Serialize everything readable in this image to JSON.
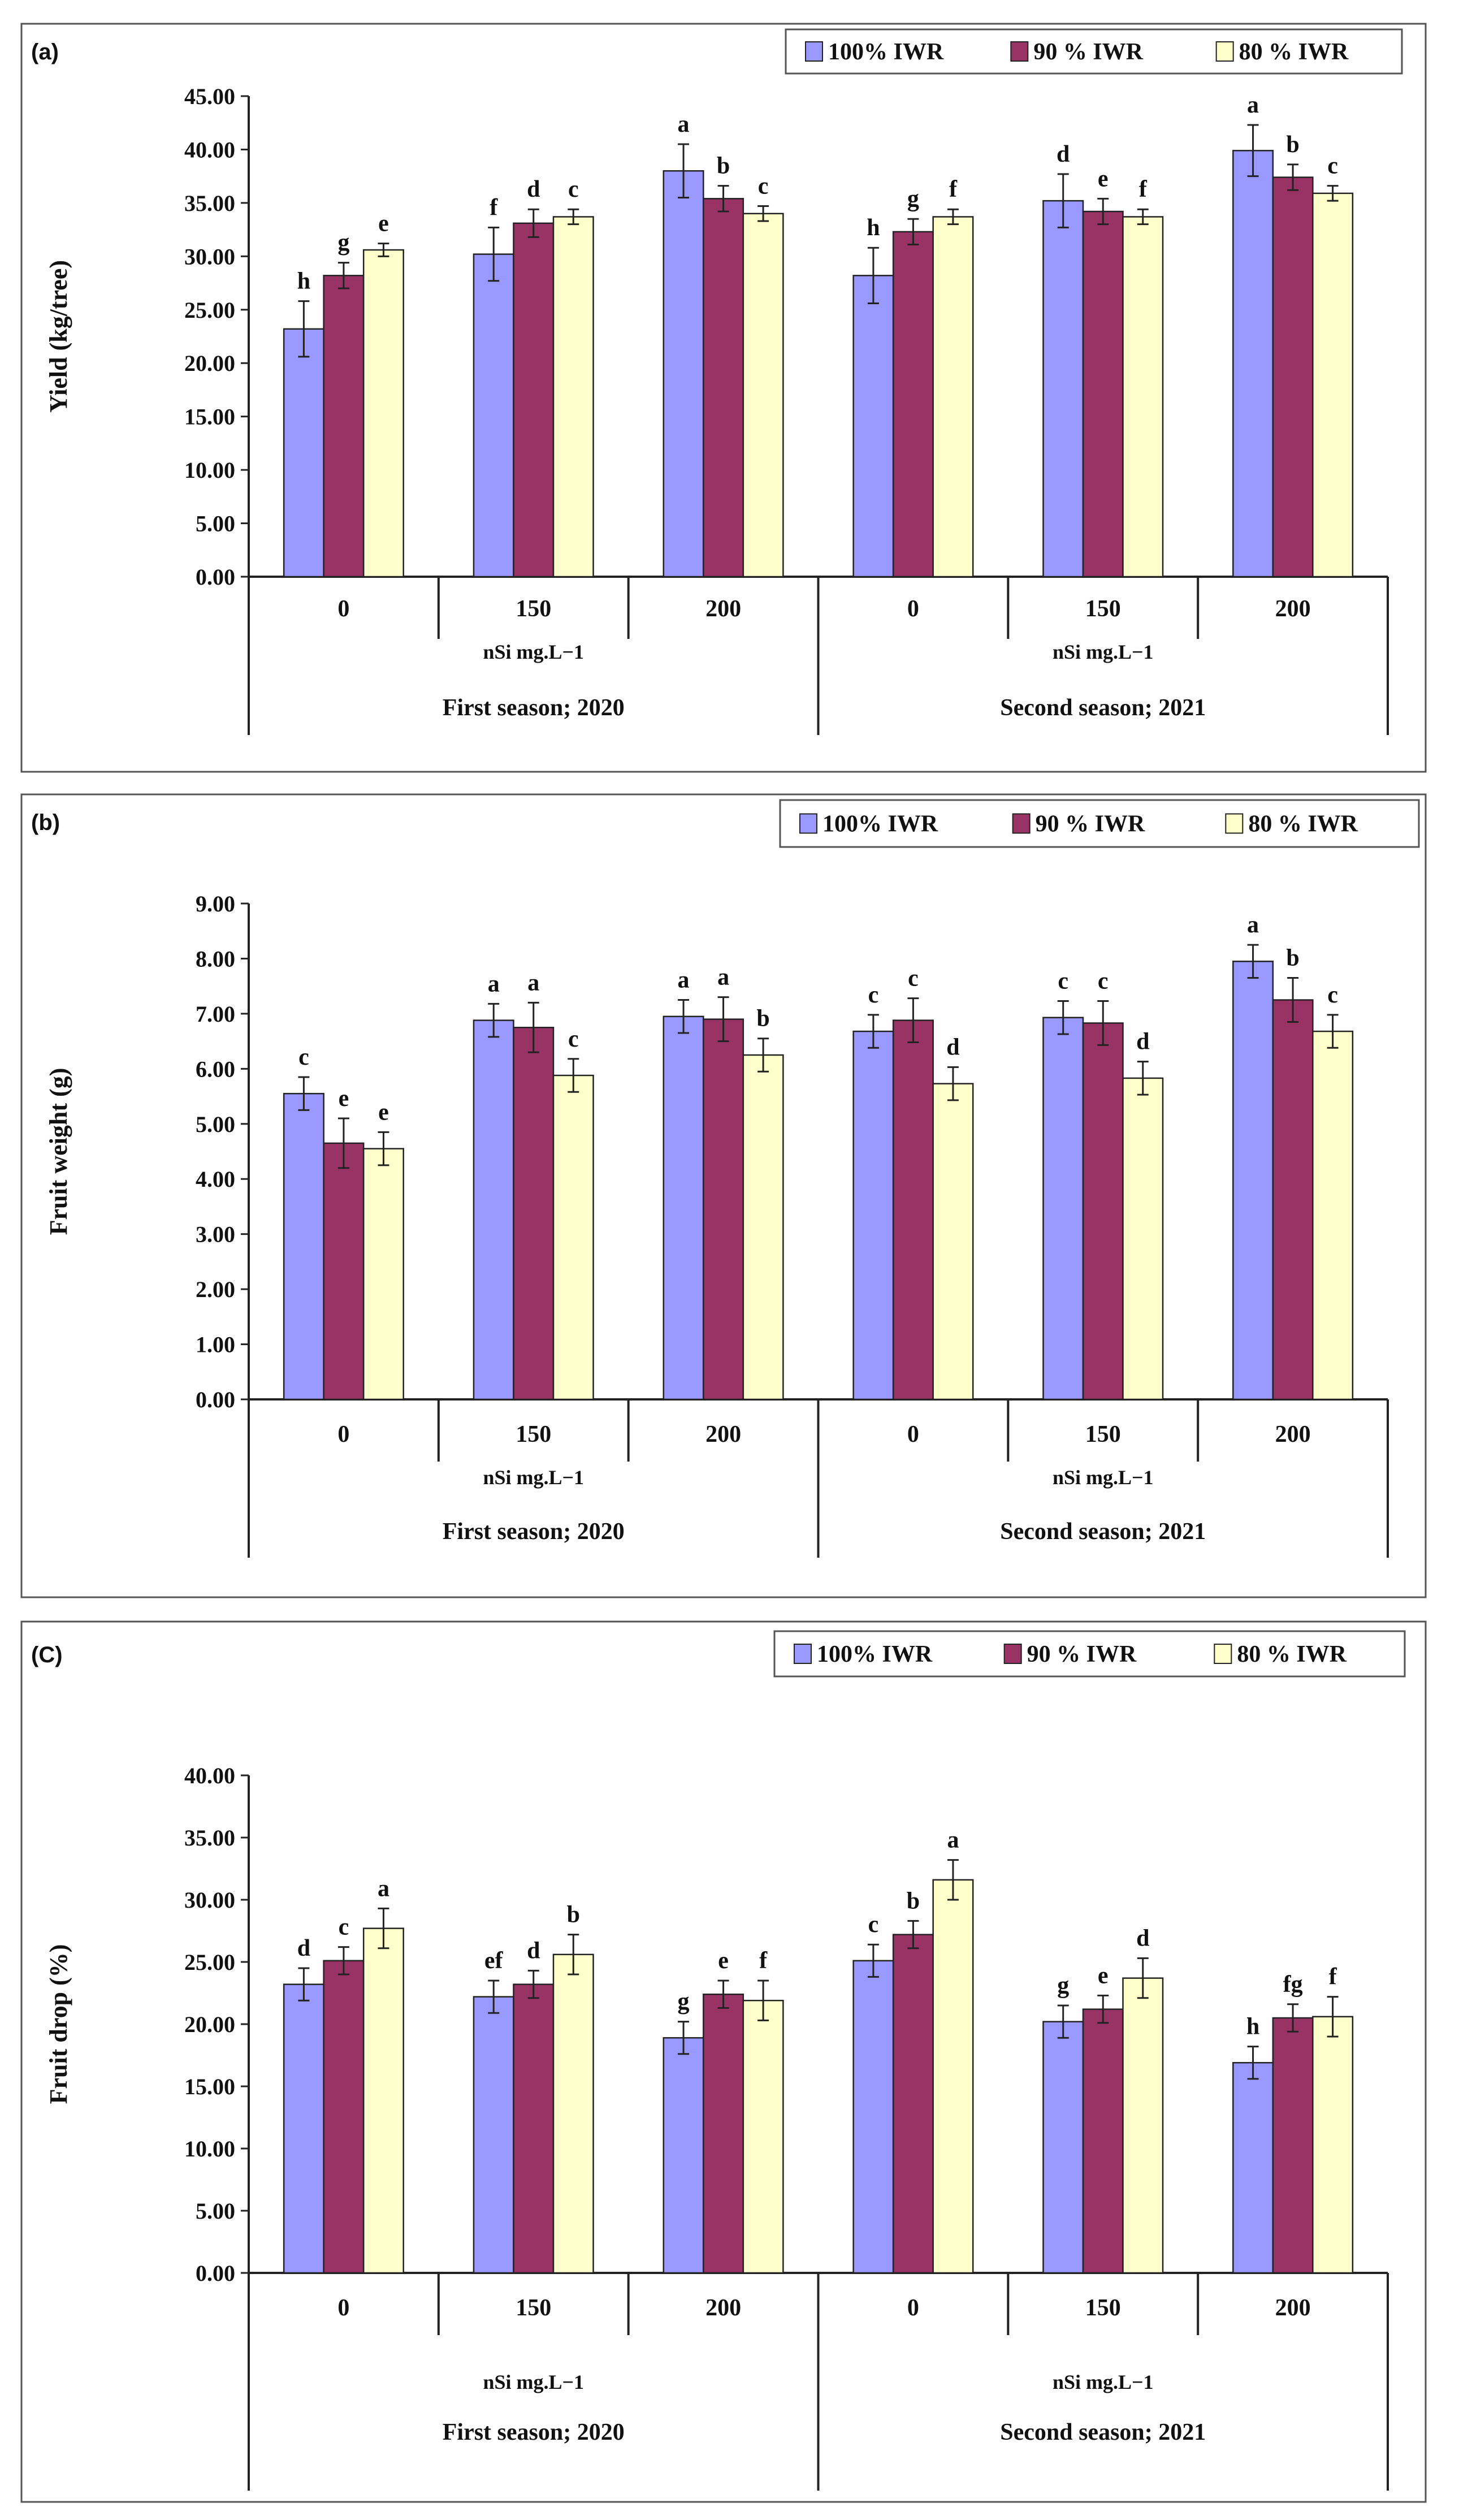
{
  "colors": {
    "series_100": "#9999ff",
    "series_90": "#993366",
    "series_80": "#ffffcc",
    "stroke": "#222222"
  },
  "chart_data": [
    {
      "panel_label": "(a)",
      "type": "bar",
      "ylabel": "Yield (kg/tree)",
      "ylim": [
        0,
        45
      ],
      "yticks": [
        "0.00",
        "5.00",
        "10.00",
        "15.00",
        "20.00",
        "25.00",
        "30.00",
        "35.00",
        "40.00",
        "45.00"
      ],
      "categories": [
        "0",
        "150",
        "200",
        "0",
        "150",
        "200"
      ],
      "groups": [
        {
          "unit": "nSi mg.L−1",
          "season": "First season; 2020"
        },
        {
          "unit": "nSi mg.L−1",
          "season": "Second season; 2021"
        }
      ],
      "legend": [
        "100% IWR",
        "90 %  IWR",
        "80 % IWR"
      ],
      "series": [
        {
          "name": "100% IWR",
          "values": [
            23.2,
            30.2,
            38.0,
            28.2,
            35.2,
            39.9
          ],
          "errors": [
            2.6,
            2.5,
            2.5,
            2.6,
            2.5,
            2.4
          ],
          "letters": [
            "h",
            "f",
            "a",
            "h",
            "d",
            "a"
          ]
        },
        {
          "name": "90 %  IWR",
          "values": [
            28.2,
            33.1,
            35.4,
            32.3,
            34.2,
            37.4
          ],
          "errors": [
            1.2,
            1.3,
            1.2,
            1.2,
            1.2,
            1.2
          ],
          "letters": [
            "g",
            "d",
            "b",
            "g",
            "e",
            "b"
          ]
        },
        {
          "name": "80 % IWR",
          "values": [
            30.6,
            33.7,
            34.0,
            33.7,
            33.7,
            35.9
          ],
          "errors": [
            0.6,
            0.7,
            0.7,
            0.7,
            0.7,
            0.7
          ],
          "letters": [
            "e",
            "c",
            "c",
            "f",
            "f",
            "c"
          ]
        }
      ]
    },
    {
      "panel_label": "(b)",
      "type": "bar",
      "ylabel": "Fruit weight (g)",
      "ylim": [
        0,
        9
      ],
      "yticks": [
        "0.00",
        "1.00",
        "2.00",
        "3.00",
        "4.00",
        "5.00",
        "6.00",
        "7.00",
        "8.00",
        "9.00"
      ],
      "categories": [
        "0",
        "150",
        "200",
        "0",
        "150",
        "200"
      ],
      "groups": [
        {
          "unit": "nSi mg.L−1",
          "season": "First season; 2020"
        },
        {
          "unit": "nSi mg.L−1",
          "season": "Second season; 2021"
        }
      ],
      "legend": [
        "100% IWR",
        "90 %  IWR",
        "80 % IWR"
      ],
      "series": [
        {
          "name": "100% IWR",
          "values": [
            5.55,
            6.88,
            6.95,
            6.68,
            6.93,
            7.95
          ],
          "errors": [
            0.3,
            0.3,
            0.3,
            0.3,
            0.3,
            0.3
          ],
          "letters": [
            "c",
            "a",
            "a",
            "c",
            "c",
            "a"
          ]
        },
        {
          "name": "90 %  IWR",
          "values": [
            4.65,
            6.75,
            6.9,
            6.88,
            6.83,
            7.25
          ],
          "errors": [
            0.45,
            0.45,
            0.4,
            0.4,
            0.4,
            0.4
          ],
          "letters": [
            "e",
            "a",
            "a",
            "c",
            "c",
            "b"
          ]
        },
        {
          "name": "80 % IWR",
          "values": [
            4.55,
            5.88,
            6.25,
            5.73,
            5.83,
            6.68
          ],
          "errors": [
            0.3,
            0.3,
            0.3,
            0.3,
            0.3,
            0.3
          ],
          "letters": [
            "e",
            "c",
            "b",
            "d",
            "d",
            "c"
          ]
        }
      ]
    },
    {
      "panel_label": "(C)",
      "type": "bar",
      "ylabel": "Fruit drop (%)",
      "ylim": [
        0,
        40
      ],
      "yticks": [
        "0.00",
        "5.00",
        "10.00",
        "15.00",
        "20.00",
        "25.00",
        "30.00",
        "35.00",
        "40.00"
      ],
      "categories": [
        "0",
        "150",
        "200",
        "0",
        "150",
        "200"
      ],
      "groups": [
        {
          "unit": "nSi mg.L−1",
          "season": "First season; 2020"
        },
        {
          "unit": "nSi mg.L−1",
          "season": "Second season; 2021"
        }
      ],
      "legend": [
        "100% IWR",
        "90 %  IWR",
        "80 % IWR"
      ],
      "series": [
        {
          "name": "100% IWR",
          "values": [
            23.2,
            22.2,
            18.9,
            25.1,
            20.2,
            16.9
          ],
          "errors": [
            1.3,
            1.3,
            1.3,
            1.3,
            1.3,
            1.3
          ],
          "letters": [
            "d",
            "ef",
            "g",
            "c",
            "g",
            "h"
          ]
        },
        {
          "name": "90 %  IWR",
          "values": [
            25.1,
            23.2,
            22.4,
            27.2,
            21.2,
            20.5
          ],
          "errors": [
            1.1,
            1.1,
            1.1,
            1.1,
            1.1,
            1.1
          ],
          "letters": [
            "c",
            "d",
            "e",
            "b",
            "e",
            "fg"
          ]
        },
        {
          "name": "80 % IWR",
          "values": [
            27.7,
            25.6,
            21.9,
            31.6,
            23.7,
            20.6
          ],
          "errors": [
            1.6,
            1.6,
            1.6,
            1.6,
            1.6,
            1.6
          ],
          "letters": [
            "a",
            "b",
            "f",
            "a",
            "d",
            "f"
          ]
        }
      ]
    }
  ]
}
